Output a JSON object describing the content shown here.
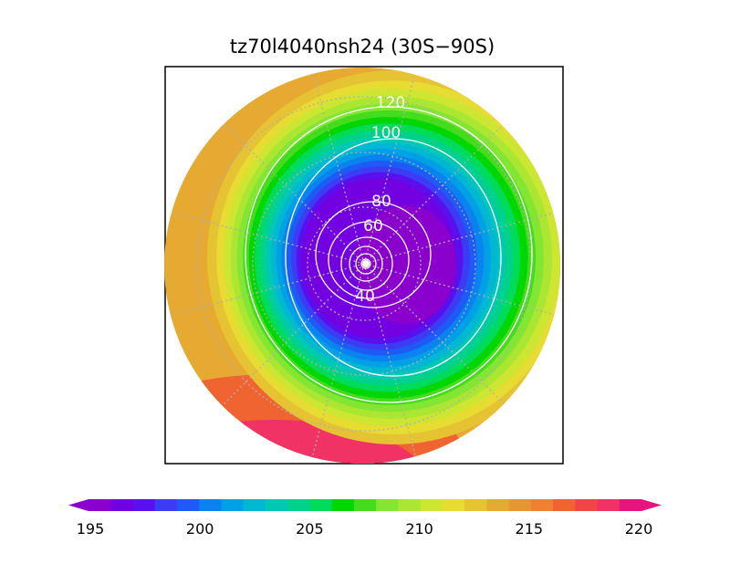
{
  "chart_data": {
    "type": "contour-map",
    "title": "tz70l4040nsh24 (30S−90S)",
    "projection": "polar stereographic",
    "region": "30S-90S",
    "shading": {
      "colorbar_ticks": [
        195,
        200,
        205,
        210,
        215,
        220
      ],
      "levels": [
        195,
        196,
        197,
        198,
        199,
        200,
        201,
        202,
        203,
        204,
        205,
        206,
        207,
        208,
        209,
        210,
        211,
        212,
        213,
        214,
        215,
        216,
        217,
        218,
        219,
        220
      ],
      "colors": [
        "#8a00cc",
        "#7300e0",
        "#5a10ee",
        "#3c3cf5",
        "#1e5af5",
        "#0a82f0",
        "#00a0e6",
        "#00b8d2",
        "#00c8b4",
        "#00d28c",
        "#00dc5a",
        "#00d600",
        "#46dc1e",
        "#82e632",
        "#aae632",
        "#cce632",
        "#e6dc32",
        "#e6c332",
        "#e6aa32",
        "#e69632",
        "#ee8232",
        "#f06432",
        "#f04646",
        "#f03264",
        "#e6147d"
      ]
    },
    "contours": {
      "color": "#ffffff",
      "labels": [
        "40",
        "60",
        "80",
        "100",
        "120"
      ]
    },
    "grid": true
  }
}
